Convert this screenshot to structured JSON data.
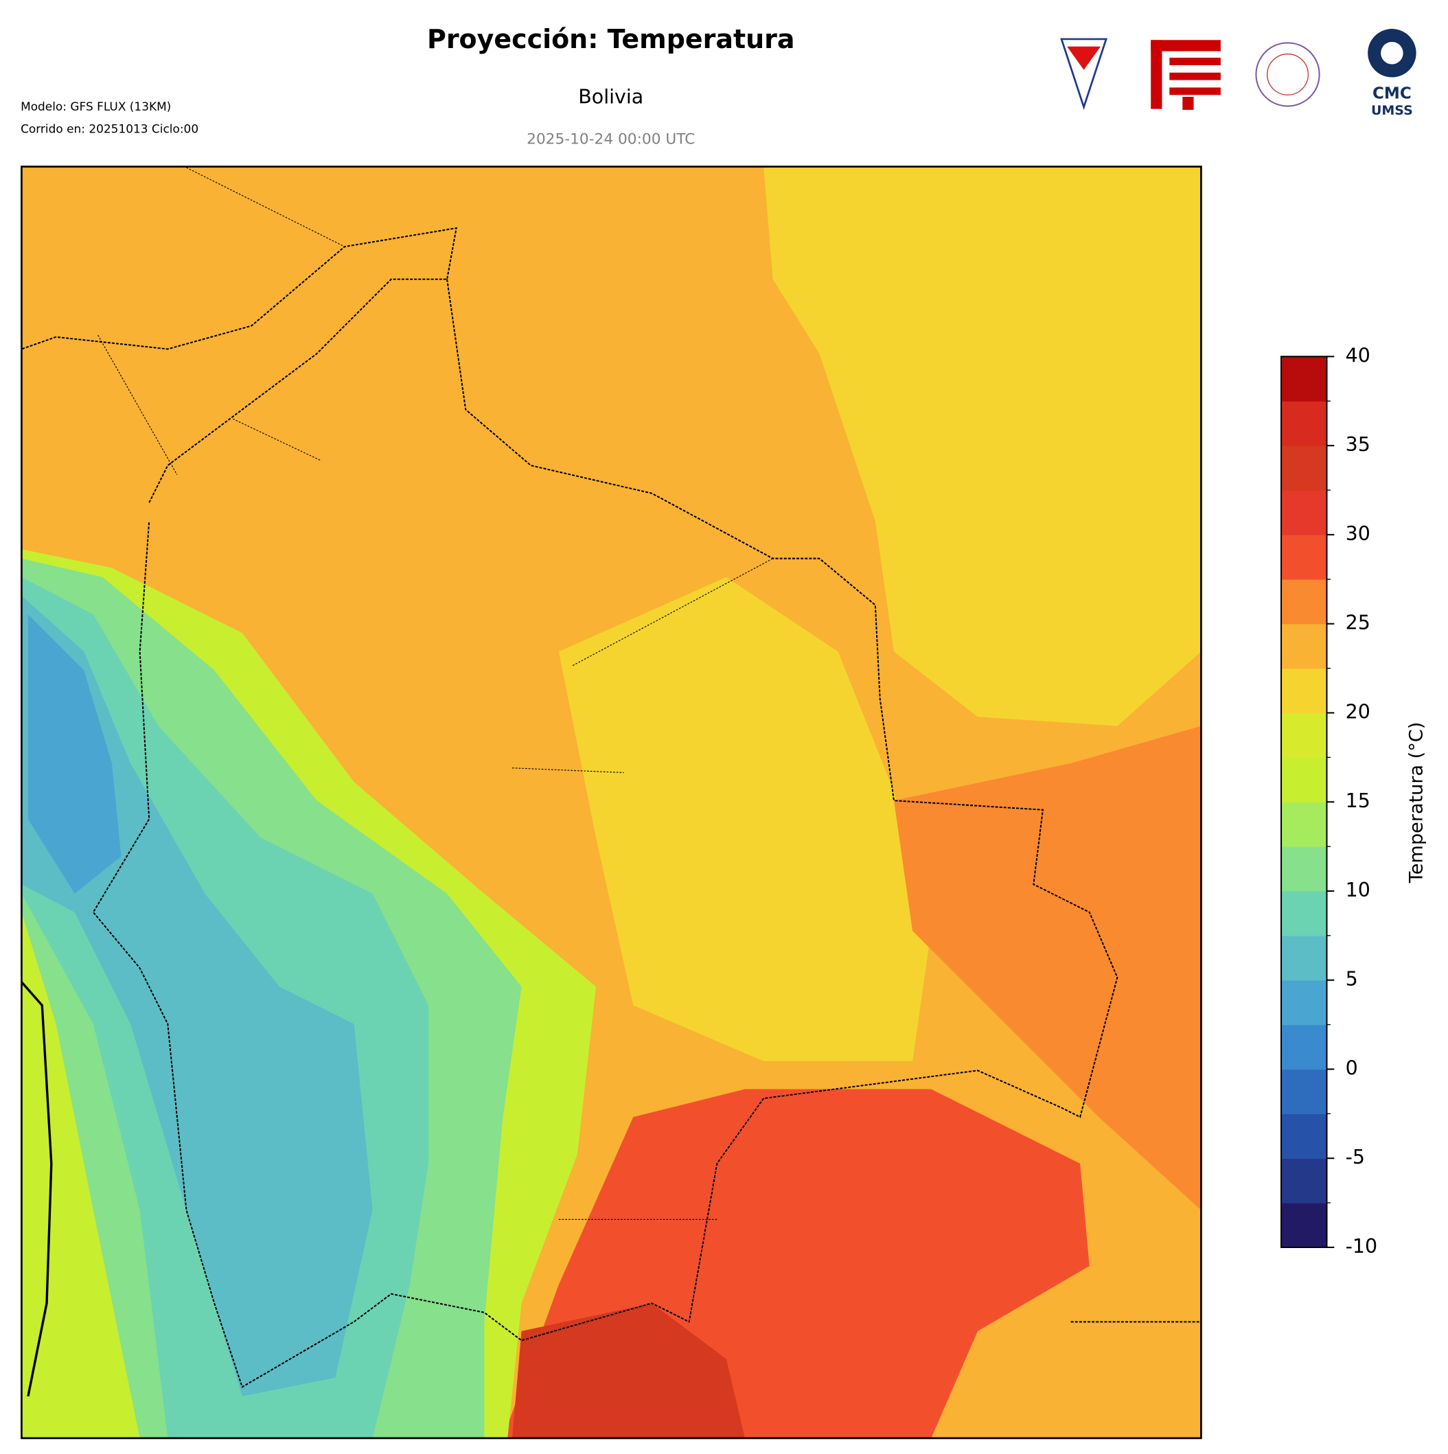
{
  "header": {
    "title": "Proyección: Temperatura",
    "subtitle": "Bolivia",
    "date": "2025-10-24 00:00 UTC",
    "model": "Modelo: GFS FLUX (13KM)",
    "run": "Corrido en: 20251013 Ciclo:00",
    "logo_text": [
      "CMC",
      "UMSS"
    ]
  },
  "colorbar": {
    "label": "Temperatura (°C)",
    "levels": [
      -10,
      -7.5,
      -5,
      -2.5,
      0,
      2.5,
      5,
      7.5,
      10,
      12.5,
      15,
      17.5,
      20,
      22.5,
      25,
      27.5,
      30,
      32.5,
      35,
      37.5,
      40
    ],
    "colors": [
      "#231a66",
      "#25398a",
      "#2652aa",
      "#2e6cbd",
      "#3a8ad0",
      "#4aa6d0",
      "#5cbdc6",
      "#6bd3b2",
      "#86e08c",
      "#a6ea5e",
      "#c8ee30",
      "#d8ea2c",
      "#f5d430",
      "#f9b233",
      "#f98a30",
      "#f2502d",
      "#e5392b",
      "#d5391f",
      "#d72b1f",
      "#b80c0c"
    ],
    "lim": [
      -10,
      40
    ],
    "ticks": [
      -10,
      -5,
      0,
      5,
      10,
      15,
      20,
      25,
      30,
      35,
      40
    ]
  }
}
